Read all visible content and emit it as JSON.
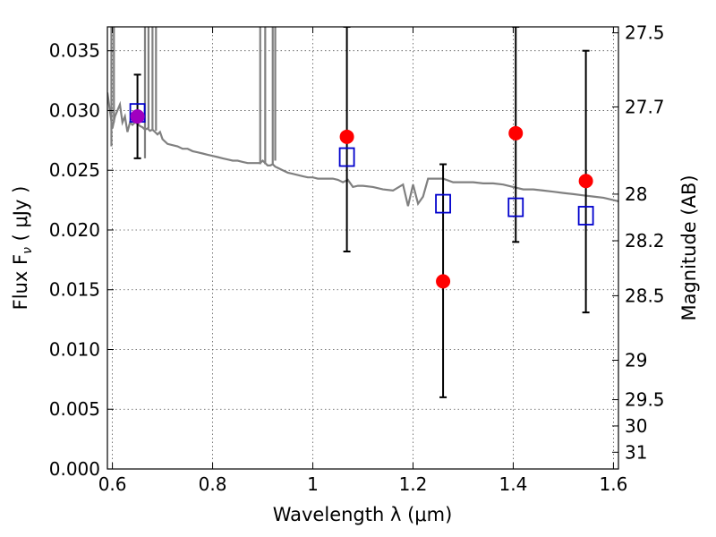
{
  "chart_data": {
    "type": "scatter",
    "xlabel": "Wavelength  λ (μm)",
    "ylabel": "Flux  F",
    "ylabel_sub": "ν",
    "ylabel_unit": "  ( μJy )",
    "y2label": "Magnitude (AB)",
    "xlim": [
      0.59,
      1.61
    ],
    "ylim": [
      0.0,
      0.037
    ],
    "grid": true,
    "x_ticks": [
      {
        "value": 0.6,
        "label": "0.6"
      },
      {
        "value": 0.8,
        "label": "0.8"
      },
      {
        "value": 1.0,
        "label": "1"
      },
      {
        "value": 1.2,
        "label": "1.2"
      },
      {
        "value": 1.4,
        "label": "1.4"
      },
      {
        "value": 1.6,
        "label": "1.6"
      }
    ],
    "y_ticks": [
      {
        "value": 0.0,
        "label": "0.000"
      },
      {
        "value": 0.005,
        "label": "0.005"
      },
      {
        "value": 0.01,
        "label": "0.010"
      },
      {
        "value": 0.015,
        "label": "0.015"
      },
      {
        "value": 0.02,
        "label": "0.020"
      },
      {
        "value": 0.025,
        "label": "0.025"
      },
      {
        "value": 0.03,
        "label": "0.030"
      },
      {
        "value": 0.035,
        "label": "0.035"
      }
    ],
    "y2_ticks": [
      {
        "label": "27.5",
        "flux": 0.0365
      },
      {
        "label": "27.7",
        "flux": 0.0303
      },
      {
        "label": "28",
        "flux": 0.023
      },
      {
        "label": "28.2",
        "flux": 0.0191
      },
      {
        "label": "28.5",
        "flux": 0.0145
      },
      {
        "label": "29",
        "flux": 0.0091
      },
      {
        "label": "29.5",
        "flux": 0.0058
      },
      {
        "label": "30",
        "flux": 0.0036
      },
      {
        "label": "31",
        "flux": 0.0014
      }
    ],
    "series": [
      {
        "kind": "model",
        "color": "#808080",
        "x": [
          0.59,
          0.595,
          0.6,
          0.605,
          0.61,
          0.615,
          0.62,
          0.625,
          0.63,
          0.635,
          0.64,
          0.645,
          0.65,
          0.655,
          0.66,
          0.665,
          0.67,
          0.675,
          0.68,
          0.685,
          0.69,
          0.695,
          0.7,
          0.71,
          0.72,
          0.73,
          0.74,
          0.75,
          0.76,
          0.77,
          0.78,
          0.79,
          0.8,
          0.81,
          0.82,
          0.83,
          0.84,
          0.85,
          0.86,
          0.87,
          0.88,
          0.89,
          0.895,
          0.9,
          0.905,
          0.91,
          0.915,
          0.92,
          0.925,
          0.93,
          0.94,
          0.95,
          0.96,
          0.97,
          0.98,
          0.99,
          1.0,
          1.01,
          1.02,
          1.03,
          1.04,
          1.05,
          1.06,
          1.07,
          1.08,
          1.09,
          1.1,
          1.12,
          1.14,
          1.16,
          1.18,
          1.19,
          1.2,
          1.21,
          1.22,
          1.23,
          1.24,
          1.26,
          1.28,
          1.3,
          1.32,
          1.34,
          1.36,
          1.38,
          1.4,
          1.42,
          1.44,
          1.46,
          1.48,
          1.5,
          1.52,
          1.54,
          1.56,
          1.58,
          1.6,
          1.61
        ],
        "y": [
          0.0315,
          0.03,
          0.0285,
          0.0295,
          0.03,
          0.0305,
          0.029,
          0.0295,
          0.0282,
          0.029,
          0.0288,
          0.029,
          0.0289,
          0.0287,
          0.0286,
          0.0284,
          0.0285,
          0.0283,
          0.0284,
          0.0282,
          0.028,
          0.0282,
          0.0276,
          0.0272,
          0.0271,
          0.027,
          0.0268,
          0.0268,
          0.0266,
          0.0265,
          0.0264,
          0.0263,
          0.0262,
          0.0261,
          0.026,
          0.0259,
          0.0258,
          0.0258,
          0.0257,
          0.0256,
          0.0256,
          0.0256,
          0.0256,
          0.0258,
          0.0256,
          0.0254,
          0.0254,
          0.0255,
          0.0253,
          0.0252,
          0.025,
          0.0248,
          0.0247,
          0.0246,
          0.0245,
          0.0244,
          0.0244,
          0.0243,
          0.0243,
          0.0243,
          0.0243,
          0.0242,
          0.024,
          0.0242,
          0.0236,
          0.0237,
          0.0237,
          0.0236,
          0.0234,
          0.0233,
          0.0238,
          0.022,
          0.0238,
          0.0222,
          0.0228,
          0.0243,
          0.0243,
          0.0243,
          0.024,
          0.024,
          0.024,
          0.0239,
          0.0239,
          0.0238,
          0.0236,
          0.0234,
          0.0234,
          0.0233,
          0.0232,
          0.0231,
          0.023,
          0.0229,
          0.0228,
          0.0227,
          0.0225,
          0.0224
        ]
      },
      {
        "kind": "observed",
        "color": "#ff0000",
        "x": [
          0.65,
          1.068,
          1.26,
          1.405,
          1.545
        ],
        "y": [
          0.0295,
          0.0278,
          0.0157,
          0.0281,
          0.0241
        ],
        "yerr_low": [
          0.026,
          0.0182,
          0.006,
          0.019,
          0.0131
        ],
        "yerr_high": [
          0.033,
          0.037,
          0.0255,
          0.037,
          0.035
        ]
      },
      {
        "kind": "model_photometry",
        "color": "#0000cc",
        "x": [
          0.65,
          1.068,
          1.26,
          1.405,
          1.545
        ],
        "y": [
          0.0298,
          0.0261,
          0.0222,
          0.0219,
          0.0212
        ]
      }
    ]
  }
}
